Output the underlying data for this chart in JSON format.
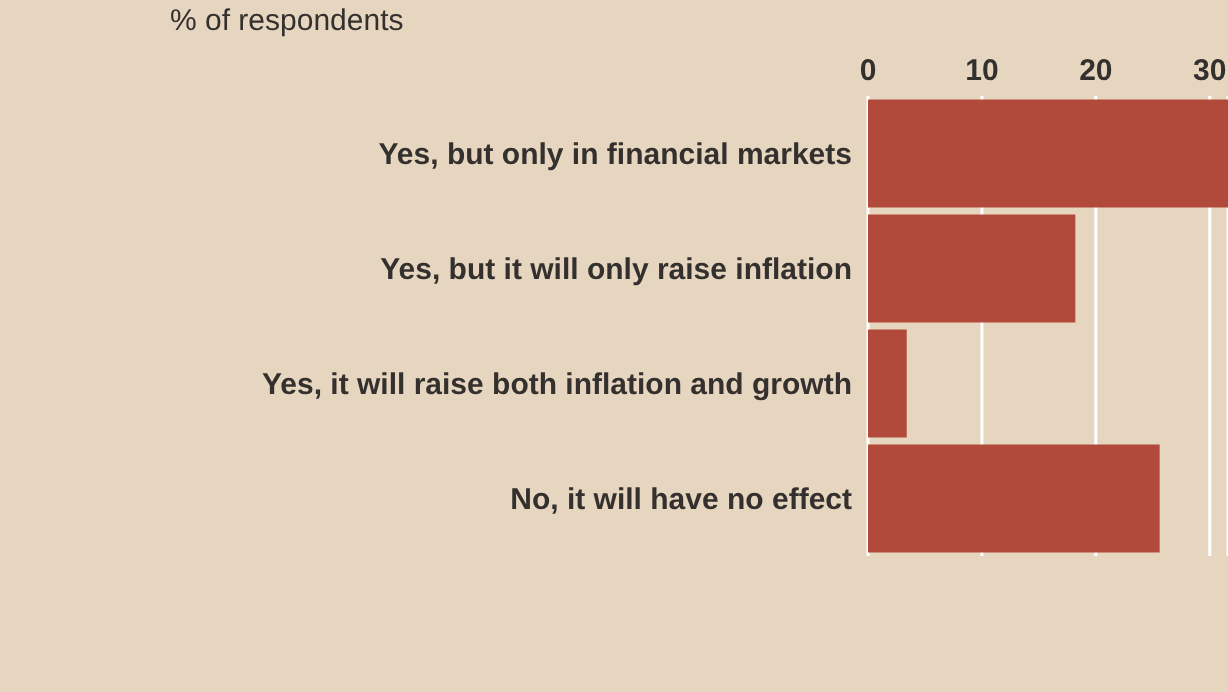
{
  "chart_data": {
    "type": "bar",
    "orientation": "horizontal",
    "subtitle": "% of respondents",
    "categories": [
      "Yes, but only in financial markets",
      "Yes, but it will only raise inflation",
      "Yes, it will raise both inflation and growth",
      "No, it will have no effect"
    ],
    "values": [
      31.6,
      18.2,
      3.4,
      25.6
    ],
    "color": "#b24a3b",
    "xlim": [
      0,
      31.6
    ],
    "xticks": [
      0,
      10,
      20,
      30
    ],
    "grid": "x"
  }
}
